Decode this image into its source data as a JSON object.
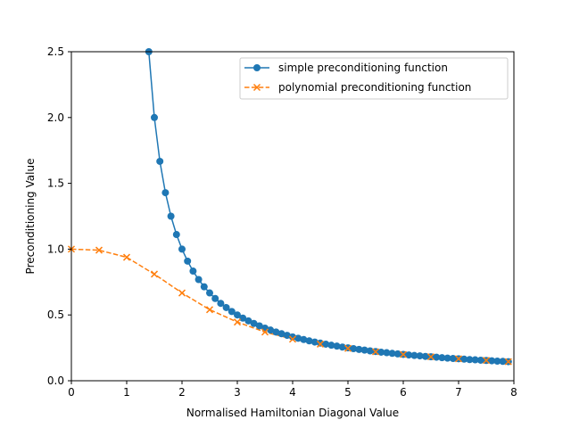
{
  "chart_data": {
    "type": "line",
    "xlabel": "Normalised Hamiltonian Diagonal Value",
    "ylabel": "Preconditioning Value",
    "xlim": [
      0,
      8
    ],
    "ylim": [
      0,
      2.5
    ],
    "xticks": [
      0,
      1,
      2,
      3,
      4,
      5,
      6,
      7,
      8
    ],
    "xtick_labels": [
      "0",
      "1",
      "2",
      "3",
      "4",
      "5",
      "6",
      "7",
      "8"
    ],
    "yticks": [
      0.0,
      0.5,
      1.0,
      1.5,
      2.0,
      2.5
    ],
    "ytick_labels": [
      "0.0",
      "0.5",
      "1.0",
      "1.5",
      "2.0",
      "2.5"
    ],
    "grid": false,
    "legend_position": "top-right",
    "series": [
      {
        "name": "simple preconditioning function",
        "color": "#1f77b4",
        "line_style": "solid",
        "marker": "circle",
        "x": [
          1.4,
          1.5,
          1.6,
          1.7,
          1.8,
          1.9,
          2.0,
          2.1,
          2.2,
          2.3,
          2.4,
          2.5,
          2.6,
          2.7,
          2.8,
          2.9,
          3.0,
          3.1,
          3.2,
          3.3,
          3.4,
          3.5,
          3.6,
          3.7,
          3.8,
          3.9,
          4.0,
          4.1,
          4.2,
          4.3,
          4.4,
          4.5,
          4.6,
          4.7,
          4.8,
          4.9,
          5.0,
          5.1,
          5.2,
          5.3,
          5.4,
          5.5,
          5.6,
          5.7,
          5.8,
          5.9,
          6.0,
          6.1,
          6.2,
          6.3,
          6.4,
          6.5,
          6.6,
          6.7,
          6.8,
          6.9,
          7.0,
          7.1,
          7.2,
          7.3,
          7.4,
          7.5,
          7.6,
          7.7,
          7.8,
          7.9
        ],
        "y": [
          2.5,
          2.0,
          1.667,
          1.429,
          1.25,
          1.111,
          1.0,
          0.909,
          0.833,
          0.769,
          0.714,
          0.667,
          0.625,
          0.588,
          0.556,
          0.526,
          0.5,
          0.476,
          0.455,
          0.435,
          0.417,
          0.4,
          0.385,
          0.37,
          0.357,
          0.345,
          0.333,
          0.323,
          0.313,
          0.303,
          0.294,
          0.286,
          0.278,
          0.27,
          0.263,
          0.256,
          0.25,
          0.244,
          0.238,
          0.233,
          0.227,
          0.222,
          0.217,
          0.213,
          0.208,
          0.204,
          0.2,
          0.196,
          0.192,
          0.189,
          0.185,
          0.182,
          0.179,
          0.175,
          0.172,
          0.169,
          0.167,
          0.164,
          0.161,
          0.159,
          0.156,
          0.154,
          0.152,
          0.149,
          0.147,
          0.145
        ]
      },
      {
        "name": "polynomial preconditioning function",
        "color": "#ff7f0e",
        "line_style": "dashed",
        "marker": "x",
        "x": [
          0.0,
          0.5,
          1.0,
          1.5,
          2.0,
          2.5,
          3.0,
          3.5,
          4.0,
          4.5,
          5.0,
          5.5,
          6.0,
          6.5,
          7.0,
          7.5,
          7.9
        ],
        "y": [
          1.0,
          0.992,
          0.938,
          0.81,
          0.667,
          0.54,
          0.446,
          0.37,
          0.316,
          0.278,
          0.246,
          0.22,
          0.2,
          0.182,
          0.167,
          0.155,
          0.145
        ]
      }
    ]
  }
}
